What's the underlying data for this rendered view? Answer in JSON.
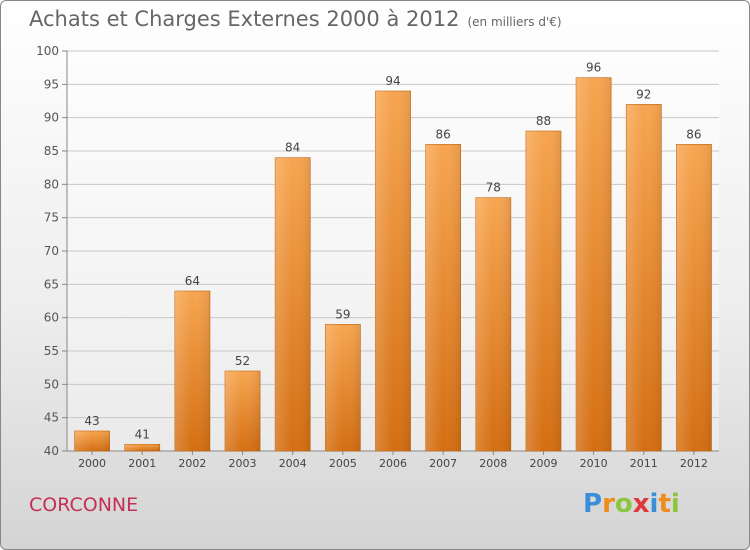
{
  "chart_data": {
    "type": "bar",
    "title": "Achats et Charges Externes 2000 à 2012",
    "subtitle": "(en milliers d'€)",
    "categories": [
      "2000",
      "2001",
      "2002",
      "2003",
      "2004",
      "2005",
      "2006",
      "2007",
      "2008",
      "2009",
      "2010",
      "2011",
      "2012"
    ],
    "values": [
      43,
      41,
      64,
      52,
      84,
      59,
      94,
      86,
      78,
      88,
      96,
      92,
      86
    ],
    "ylim": [
      40,
      100
    ],
    "yticks": [
      40,
      45,
      50,
      55,
      60,
      65,
      70,
      75,
      80,
      85,
      90,
      95,
      100
    ],
    "grid": true,
    "bar_color": "#f0903a"
  },
  "footer": {
    "commune": "CORCONNE",
    "brand_letters": [
      "P",
      "r",
      "o",
      "x",
      "i",
      "t",
      "i"
    ],
    "brand_colors": [
      "#3a8fd8",
      "#f08c1e",
      "#8cc63e",
      "#e0383a",
      "#3a8fd8",
      "#f08c1e",
      "#8cc63e"
    ]
  }
}
